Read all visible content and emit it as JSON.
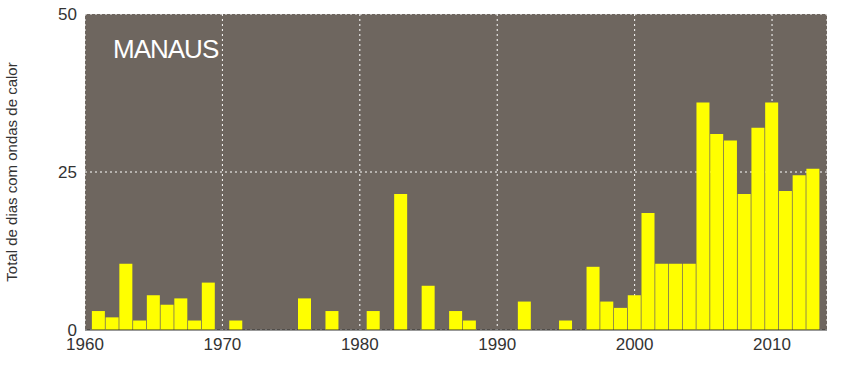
{
  "chart_data": {
    "type": "bar",
    "title": "MANAUS",
    "y_label": "Total de dias com ondas de calor",
    "x": [
      1961,
      1962,
      1963,
      1964,
      1965,
      1966,
      1967,
      1968,
      1969,
      1970,
      1971,
      1972,
      1973,
      1974,
      1975,
      1976,
      1977,
      1978,
      1979,
      1980,
      1981,
      1982,
      1983,
      1984,
      1985,
      1986,
      1987,
      1988,
      1989,
      1990,
      1991,
      1992,
      1993,
      1994,
      1995,
      1996,
      1997,
      1998,
      1999,
      2000,
      2001,
      2002,
      2003,
      2004,
      2005,
      2006,
      2007,
      2008,
      2009,
      2010,
      2011,
      2012,
      2013
    ],
    "values": [
      3,
      2,
      10.5,
      1.5,
      5.5,
      4,
      5,
      1.5,
      7.5,
      0,
      1.5,
      0,
      0,
      0,
      0,
      5,
      0,
      3,
      0,
      0,
      3,
      0,
      21.5,
      0,
      7,
      0,
      3,
      1.5,
      0,
      0,
      0,
      4.5,
      0,
      0,
      1.5,
      0,
      10,
      4.5,
      3.5,
      5.5,
      18.5,
      10.5,
      10.5,
      10.5,
      36,
      31,
      30,
      21.5,
      32,
      36,
      22,
      24.5,
      25.5
    ],
    "color": "#ffff00",
    "xlim": [
      1960,
      2014
    ],
    "xticks": [
      1960,
      1970,
      1980,
      1990,
      2000,
      2010
    ],
    "ylim": [
      0,
      50
    ],
    "yticks": [
      0,
      25,
      50
    ],
    "grid": true
  }
}
